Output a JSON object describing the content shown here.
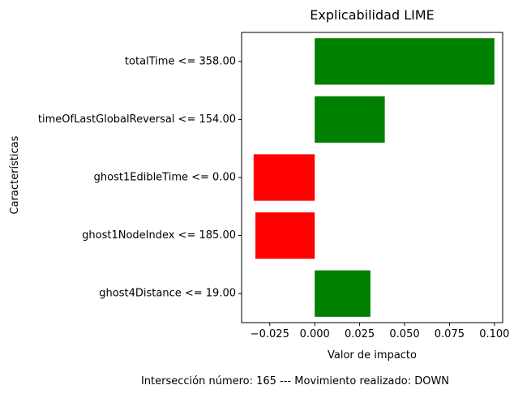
{
  "chart_data": {
    "type": "bar",
    "orientation": "horizontal",
    "title": "Explicabilidad LIME",
    "xlabel": "Valor de impacto",
    "ylabel": "Características",
    "categories": [
      "totalTime <= 358.00",
      "timeOfLastGlobalReversal <= 154.00",
      "ghost1EdibleTime <= 0.00",
      "ghost1NodeIndex <= 185.00",
      "ghost4Distance <= 19.00"
    ],
    "values": [
      0.1,
      0.039,
      -0.034,
      -0.033,
      0.031
    ],
    "bar_colors": [
      "#008000",
      "#008000",
      "#ff0000",
      "#ff0000",
      "#008000"
    ],
    "xlim": [
      -0.0407,
      0.1046
    ],
    "xticks": [
      -0.025,
      0.0,
      0.025,
      0.05,
      0.075,
      0.1
    ],
    "xtick_labels": [
      "−0.025",
      "0.000",
      "0.025",
      "0.050",
      "0.075",
      "0.100"
    ],
    "grid": false,
    "legend": "none"
  },
  "caption": "Intersección número: 165 --- Movimiento realizado: DOWN"
}
